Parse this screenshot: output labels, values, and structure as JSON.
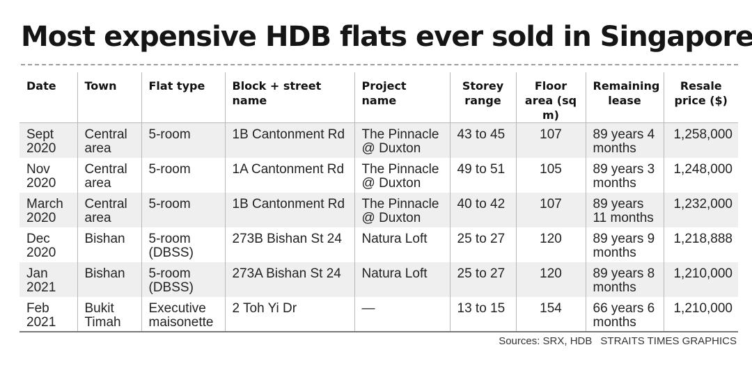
{
  "title": "Most expensive HDB flats ever sold in Singapore",
  "source": "Sources: SRX, HDB",
  "credit": "STRAITS TIMES GRAPHICS",
  "chart_data": {
    "type": "table",
    "title": "Most expensive HDB flats ever sold in Singapore",
    "columns": [
      "Date",
      "Town",
      "Flat type",
      "Block + street name",
      "Project name",
      "Storey range",
      "Floor area (sq m)",
      "Remaining lease",
      "Resale price ($)"
    ],
    "rows": [
      [
        "Sept 2020",
        "Central area",
        "5-room",
        "1B Cantonment Rd",
        "The Pinnacle @ Duxton",
        "43 to 45",
        "107",
        "89 years 4 months",
        "1,258,000"
      ],
      [
        "Nov 2020",
        "Central area",
        "5-room",
        "1A Cantonment Rd",
        "The Pinnacle @ Duxton",
        "49 to 51",
        "105",
        "89 years 3 months",
        "1,248,000"
      ],
      [
        "March 2020",
        "Central area",
        "5-room",
        "1B Cantonment Rd",
        "The Pinnacle @ Duxton",
        "40 to 42",
        "107",
        "89 years 11 months",
        "1,232,000"
      ],
      [
        "Dec 2020",
        "Bishan",
        "5-room (DBSS)",
        "273B Bishan St 24",
        "Natura Loft",
        "25 to 27",
        "120",
        "89 years 9 months",
        "1,218,888"
      ],
      [
        "Jan 2021",
        "Bishan",
        "5-room (DBSS)",
        "273A Bishan St 24",
        "Natura Loft",
        "25 to 27",
        "120",
        "89 years 8 months",
        "1,210,000"
      ],
      [
        "Feb 2021",
        "Bukit Timah",
        "Executive maisonette",
        "2 Toh Yi Dr",
        "—",
        "13 to 15",
        "154",
        "66 years 6 months",
        "1,210,000"
      ]
    ]
  }
}
